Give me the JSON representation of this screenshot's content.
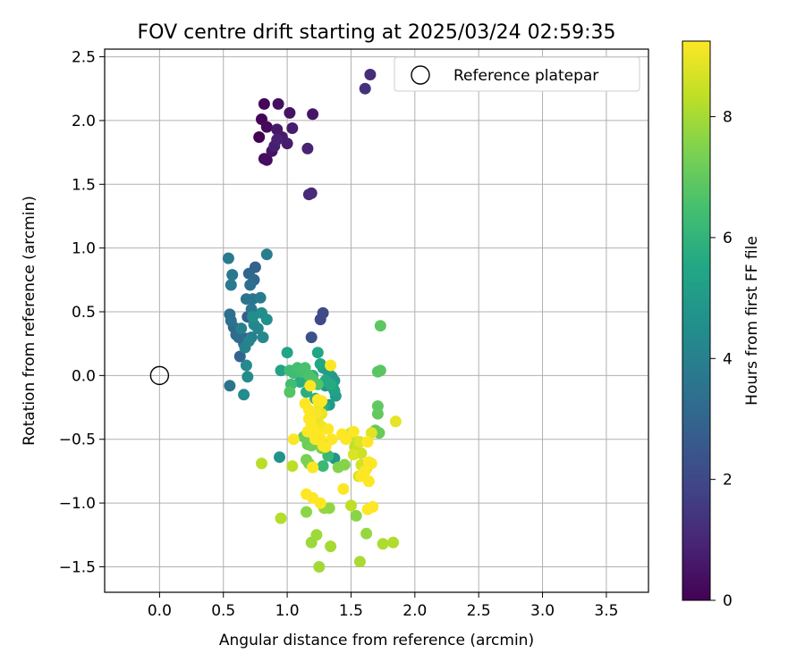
{
  "chart_data": {
    "type": "scatter",
    "title": "FOV centre drift starting at 2025/03/24 02:59:35",
    "xlabel": "Angular distance from reference (arcmin)",
    "ylabel": "Rotation from reference (arcmin)",
    "xlim": [
      -0.43,
      3.83
    ],
    "ylim": [
      -1.7,
      2.56
    ],
    "xticks": [
      0.0,
      0.5,
      1.0,
      1.5,
      2.0,
      2.5,
      3.0,
      3.5
    ],
    "xtick_labels": [
      "0.0",
      "0.5",
      "1.0",
      "1.5",
      "2.0",
      "2.5",
      "3.0",
      "3.5"
    ],
    "yticks": [
      -1.5,
      -1.0,
      -0.5,
      0.0,
      0.5,
      1.0,
      1.5,
      2.0,
      2.5
    ],
    "ytick_labels": [
      "−1.5",
      "−1.0",
      "−0.5",
      "0.0",
      "0.5",
      "1.0",
      "1.5",
      "2.0",
      "2.5"
    ],
    "grid": true,
    "legend": {
      "location": "upper right",
      "entries": [
        "Reference platepar"
      ]
    },
    "reference_point": {
      "x": 0.0,
      "y": 0.0,
      "label": "Reference platepar"
    },
    "colorbar": {
      "label": "Hours from first FF file",
      "colormap": "viridis",
      "min": 0,
      "max": 9.25,
      "ticks": [
        0,
        2,
        4,
        6,
        8
      ],
      "tick_labels": [
        "0",
        "2",
        "4",
        "6",
        "8"
      ]
    },
    "points": [
      [
        0.78,
        1.87,
        0.0
      ],
      [
        0.8,
        2.01,
        0.1
      ],
      [
        0.82,
        2.13,
        0.15
      ],
      [
        0.84,
        1.95,
        0.2
      ],
      [
        0.82,
        1.7,
        0.3
      ],
      [
        0.84,
        1.69,
        0.35
      ],
      [
        0.93,
        2.13,
        0.4
      ],
      [
        1.02,
        2.06,
        0.45
      ],
      [
        1.2,
        2.05,
        0.5
      ],
      [
        0.88,
        1.76,
        0.5
      ],
      [
        0.92,
        1.93,
        0.6
      ],
      [
        0.96,
        1.87,
        0.65
      ],
      [
        1.04,
        1.94,
        0.7
      ],
      [
        1.0,
        1.82,
        0.75
      ],
      [
        0.9,
        1.8,
        0.8
      ],
      [
        0.92,
        1.85,
        0.85
      ],
      [
        1.16,
        1.78,
        0.9
      ],
      [
        1.17,
        1.42,
        1.05
      ],
      [
        1.19,
        1.43,
        1.1
      ],
      [
        1.65,
        2.36,
        1.2
      ],
      [
        1.61,
        2.25,
        1.3
      ],
      [
        1.26,
        0.44,
        2.0
      ],
      [
        1.28,
        0.49,
        2.1
      ],
      [
        1.19,
        0.3,
        2.3
      ],
      [
        0.69,
        0.46,
        2.7
      ],
      [
        0.68,
        0.29,
        2.8
      ],
      [
        0.75,
        0.85,
        2.9
      ],
      [
        0.63,
        0.15,
        2.95
      ],
      [
        0.7,
        0.8,
        3.0
      ],
      [
        0.74,
        0.75,
        3.1
      ],
      [
        0.58,
        0.38,
        3.15
      ],
      [
        0.6,
        0.32,
        3.2
      ],
      [
        0.62,
        0.3,
        3.25
      ],
      [
        0.66,
        0.25,
        3.3
      ],
      [
        0.71,
        0.71,
        3.35
      ],
      [
        0.55,
        0.48,
        3.4
      ],
      [
        0.56,
        0.43,
        3.45
      ],
      [
        0.55,
        -0.08,
        3.5
      ],
      [
        0.68,
        0.6,
        3.55
      ],
      [
        0.73,
        0.6,
        3.6
      ],
      [
        0.72,
        0.52,
        3.65
      ],
      [
        0.57,
        0.79,
        3.7
      ],
      [
        0.56,
        0.71,
        3.75
      ],
      [
        0.54,
        0.92,
        3.8
      ],
      [
        0.79,
        0.61,
        3.85
      ],
      [
        0.84,
        0.95,
        3.9
      ],
      [
        0.72,
        0.3,
        4.0
      ],
      [
        0.64,
        0.37,
        4.05
      ],
      [
        0.67,
        0.22,
        4.1
      ],
      [
        0.7,
        0.27,
        4.15
      ],
      [
        0.74,
        0.4,
        4.2
      ],
      [
        0.77,
        0.37,
        4.25
      ],
      [
        0.81,
        0.3,
        4.3
      ],
      [
        0.68,
        0.08,
        4.35
      ],
      [
        0.69,
        -0.01,
        4.4
      ],
      [
        0.66,
        -0.15,
        4.45
      ],
      [
        0.73,
        0.46,
        4.5
      ],
      [
        0.8,
        0.49,
        4.55
      ],
      [
        0.84,
        0.44,
        4.6
      ],
      [
        0.94,
        -0.64,
        4.7
      ],
      [
        1.37,
        -0.65,
        4.8
      ],
      [
        1.35,
        -0.01,
        4.85
      ],
      [
        1.3,
        -0.08,
        4.9
      ],
      [
        1.33,
        -0.23,
        4.95
      ],
      [
        1.37,
        -0.04,
        5.0
      ],
      [
        1.38,
        -0.16,
        5.05
      ],
      [
        1.28,
        0.06,
        5.1
      ],
      [
        1.32,
        0.03,
        5.15
      ],
      [
        1.36,
        -0.1,
        5.2
      ],
      [
        1.37,
        -0.12,
        5.25
      ],
      [
        0.95,
        0.04,
        5.3
      ],
      [
        1.0,
        0.18,
        5.4
      ],
      [
        1.24,
        0.18,
        5.45
      ],
      [
        1.26,
        0.09,
        5.5
      ],
      [
        1.29,
        -0.24,
        5.55
      ],
      [
        1.3,
        -0.04,
        5.6
      ],
      [
        1.34,
        -0.07,
        5.65
      ],
      [
        1.1,
        -0.05,
        5.7
      ],
      [
        1.12,
        0.0,
        5.75
      ],
      [
        1.15,
        -0.13,
        5.8
      ],
      [
        1.18,
        -0.05,
        5.85
      ],
      [
        1.22,
        -0.18,
        5.9
      ],
      [
        1.2,
        0.0,
        5.95
      ],
      [
        1.24,
        -0.29,
        6.0
      ],
      [
        1.27,
        -0.26,
        6.05
      ],
      [
        1.3,
        -0.55,
        6.1
      ],
      [
        1.32,
        -0.63,
        6.15
      ],
      [
        1.28,
        -0.71,
        6.2
      ],
      [
        1.05,
        0.02,
        6.3
      ],
      [
        1.02,
        0.04,
        6.35
      ],
      [
        1.03,
        -0.07,
        6.4
      ],
      [
        1.08,
        0.06,
        6.45
      ],
      [
        1.11,
        0.03,
        6.5
      ],
      [
        1.14,
        0.06,
        6.55
      ],
      [
        1.17,
        0.0,
        6.6
      ],
      [
        1.2,
        -0.03,
        6.65
      ],
      [
        1.24,
        -0.07,
        6.7
      ],
      [
        1.02,
        -0.13,
        6.75
      ],
      [
        1.71,
        0.03,
        6.8
      ],
      [
        1.73,
        0.04,
        6.85
      ],
      [
        1.73,
        0.39,
        6.9
      ],
      [
        1.71,
        -0.24,
        6.95
      ],
      [
        1.71,
        -0.3,
        7.0
      ],
      [
        1.69,
        -0.43,
        7.05
      ],
      [
        1.72,
        -0.45,
        7.1
      ],
      [
        1.13,
        -0.48,
        7.15
      ],
      [
        1.16,
        -0.54,
        7.2
      ],
      [
        1.19,
        -0.55,
        7.25
      ],
      [
        1.27,
        -0.57,
        7.3
      ],
      [
        1.15,
        -0.66,
        7.35
      ],
      [
        1.17,
        -0.69,
        7.4
      ],
      [
        1.2,
        -0.72,
        7.45
      ],
      [
        1.4,
        -0.72,
        7.5
      ],
      [
        1.45,
        -0.7,
        7.55
      ],
      [
        1.54,
        -1.1,
        7.6
      ],
      [
        1.15,
        -1.07,
        7.65
      ],
      [
        1.33,
        -1.04,
        7.7
      ],
      [
        1.29,
        -1.04,
        7.75
      ],
      [
        1.62,
        -1.24,
        7.8
      ],
      [
        1.19,
        -1.31,
        7.85
      ],
      [
        1.23,
        -1.25,
        7.9
      ],
      [
        1.25,
        -1.5,
        7.95
      ],
      [
        1.34,
        -1.34,
        8.0
      ],
      [
        1.57,
        -1.46,
        8.05
      ],
      [
        1.75,
        -1.32,
        8.1
      ],
      [
        1.83,
        -1.31,
        8.15
      ],
      [
        0.95,
        -1.12,
        8.2
      ],
      [
        0.8,
        -0.69,
        8.25
      ],
      [
        1.04,
        -0.71,
        8.3
      ],
      [
        1.5,
        -1.02,
        8.35
      ],
      [
        1.53,
        -0.56,
        8.4
      ],
      [
        1.55,
        -0.52,
        8.45
      ],
      [
        1.5,
        -0.45,
        8.5
      ],
      [
        1.58,
        -0.61,
        8.55
      ],
      [
        1.62,
        -0.73,
        8.6
      ],
      [
        1.58,
        -0.7,
        8.65
      ],
      [
        1.56,
        -0.79,
        8.7
      ],
      [
        1.52,
        -0.62,
        8.75
      ],
      [
        1.57,
        -0.52,
        8.8
      ],
      [
        1.66,
        -0.45,
        8.85
      ],
      [
        1.85,
        -0.36,
        8.9
      ],
      [
        1.24,
        -0.36,
        8.95
      ],
      [
        1.27,
        -0.3,
        9.0
      ],
      [
        1.27,
        -0.4,
        9.05
      ],
      [
        1.25,
        -0.22,
        9.1
      ],
      [
        1.22,
        -0.3,
        9.15
      ],
      [
        1.19,
        -0.39,
        9.2
      ],
      [
        1.17,
        -0.34,
        9.25
      ],
      [
        1.26,
        -0.49,
        9.25
      ],
      [
        1.32,
        -0.42,
        9.25
      ],
      [
        1.35,
        -0.5,
        9.25
      ],
      [
        1.28,
        -0.55,
        9.25
      ],
      [
        1.43,
        -0.46,
        9.25
      ],
      [
        1.46,
        -0.5,
        9.25
      ],
      [
        1.52,
        -0.44,
        9.25
      ],
      [
        1.63,
        -0.52,
        9.25
      ],
      [
        1.64,
        -0.68,
        9.25
      ],
      [
        1.66,
        -0.69,
        9.25
      ],
      [
        1.64,
        -0.83,
        9.25
      ],
      [
        1.61,
        -0.75,
        9.25
      ],
      [
        1.58,
        -0.79,
        9.25
      ],
      [
        1.63,
        -1.05,
        9.25
      ],
      [
        1.67,
        -1.03,
        9.25
      ],
      [
        1.44,
        -0.89,
        9.25
      ],
      [
        1.2,
        -0.72,
        9.25
      ],
      [
        1.22,
        -0.5,
        9.25
      ],
      [
        1.15,
        -0.93,
        9.25
      ],
      [
        1.2,
        -0.96,
        9.25
      ],
      [
        1.26,
        -1.0,
        9.25
      ],
      [
        1.24,
        -0.45,
        9.25
      ],
      [
        1.16,
        -0.44,
        9.25
      ],
      [
        1.17,
        -0.27,
        9.25
      ],
      [
        1.14,
        -0.22,
        9.25
      ],
      [
        1.18,
        -0.08,
        9.25
      ],
      [
        1.24,
        -0.19,
        9.25
      ],
      [
        1.27,
        -0.2,
        9.25
      ],
      [
        1.34,
        0.08,
        9.25
      ],
      [
        1.05,
        -0.5,
        9.25
      ],
      [
        1.3,
        -0.56,
        9.25
      ],
      [
        1.18,
        -0.34,
        9.25
      ]
    ]
  }
}
